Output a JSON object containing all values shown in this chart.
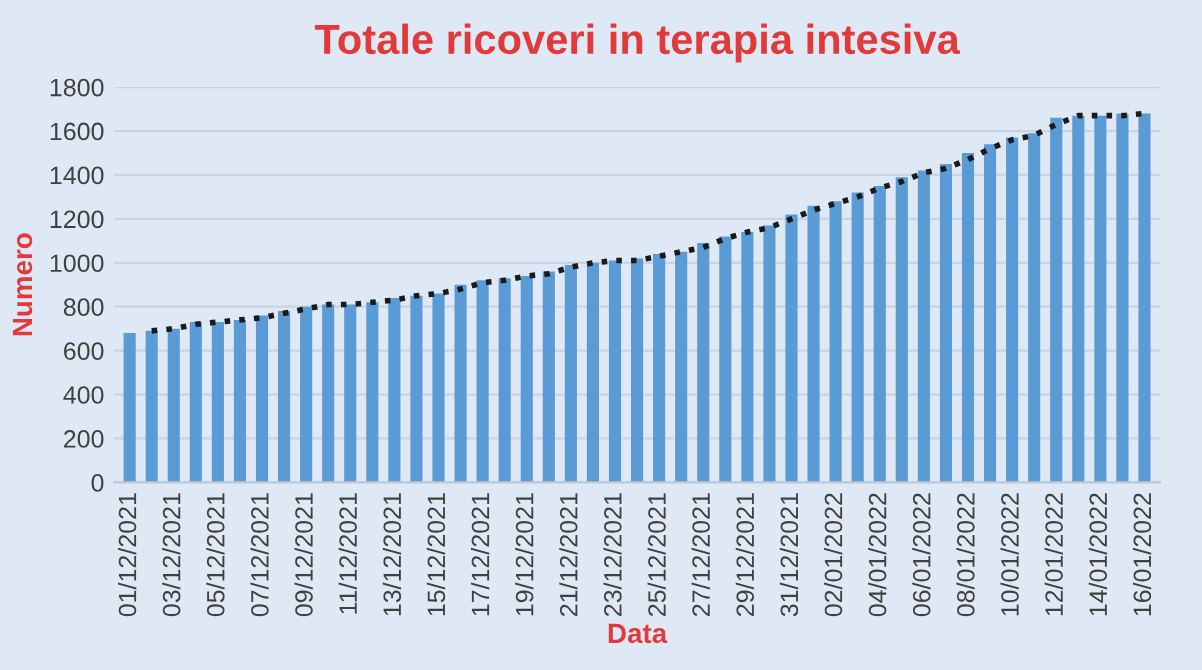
{
  "chart_data": {
    "type": "bar",
    "title": "Totale ricoveri in terapia intesiva",
    "xlabel": "Data",
    "ylabel": "Numero",
    "categories": [
      "01/12/2021",
      null,
      "03/12/2021",
      null,
      "05/12/2021",
      null,
      "07/12/2021",
      null,
      "09/12/2021",
      null,
      "11/12/2021",
      null,
      "13/12/2021",
      null,
      "15/12/2021",
      null,
      "17/12/2021",
      null,
      "19/12/2021",
      null,
      "21/12/2021",
      null,
      "23/12/2021",
      null,
      "25/12/2021",
      null,
      "27/12/2021",
      null,
      "29/12/2021",
      null,
      "31/12/2021",
      null,
      "02/01/2022",
      null,
      "04/01/2022",
      null,
      "06/01/2022",
      null,
      "08/01/2022",
      null,
      "10/01/2022",
      null,
      "12/01/2022",
      null,
      "14/01/2022",
      null,
      "16/01/2022"
    ],
    "series": [
      {
        "color": "#5b9bd5",
        "values": [
          680,
          690,
          700,
          730,
          730,
          740,
          760,
          780,
          800,
          810,
          810,
          820,
          840,
          850,
          860,
          900,
          920,
          930,
          940,
          960,
          990,
          1000,
          1010,
          1020,
          1040,
          1050,
          1090,
          1120,
          1140,
          1170,
          1220,
          1260,
          1280,
          1320,
          1350,
          1390,
          1420,
          1450,
          1500,
          1540,
          1570,
          1590,
          1660,
          1670,
          1670,
          1680,
          1680
        ]
      },
      {
        "type": "line",
        "color": "#1a1a1a",
        "line_style": "dotted",
        "values": [
          null,
          690,
          700,
          720,
          730,
          740,
          750,
          770,
          790,
          810,
          810,
          820,
          830,
          850,
          860,
          880,
          910,
          920,
          940,
          950,
          980,
          1000,
          1010,
          1010,
          1030,
          1050,
          1070,
          1110,
          1140,
          1160,
          1200,
          1240,
          1270,
          1300,
          1340,
          1370,
          1410,
          1430,
          1470,
          1520,
          1560,
          1580,
          1630,
          1670,
          1670,
          1670,
          1680
        ]
      }
    ],
    "ylim": [
      0,
      1800
    ],
    "yticks": [
      0,
      200,
      400,
      600,
      800,
      1000,
      1200,
      1400,
      1600,
      1800
    ],
    "grid": "y"
  }
}
